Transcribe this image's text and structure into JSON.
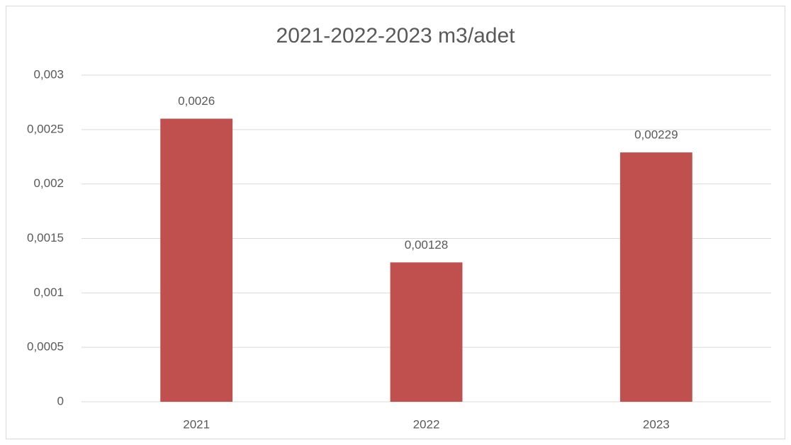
{
  "chart_data": {
    "type": "bar",
    "title": "2021-2022-2023 m3/adet",
    "categories": [
      "2021",
      "2022",
      "2023"
    ],
    "values": [
      0.0026,
      0.00128,
      0.00229
    ],
    "value_labels": [
      "0,0026",
      "0,00128",
      "0,00229"
    ],
    "color": "#c0504d",
    "ylim": [
      0,
      0.003
    ],
    "yticks": [
      0,
      {
        "value": 0.0005,
        "label": "0,0005"
      },
      {
        "value": 0.001,
        "label": "0,001"
      },
      {
        "value": 0.0015,
        "label": "0,0015"
      },
      {
        "value": 0.002,
        "label": "0,002"
      },
      {
        "value": 0.0025,
        "label": "0,0025"
      },
      {
        "value": 0.003,
        "label": "0,003"
      }
    ],
    "grid": true
  }
}
